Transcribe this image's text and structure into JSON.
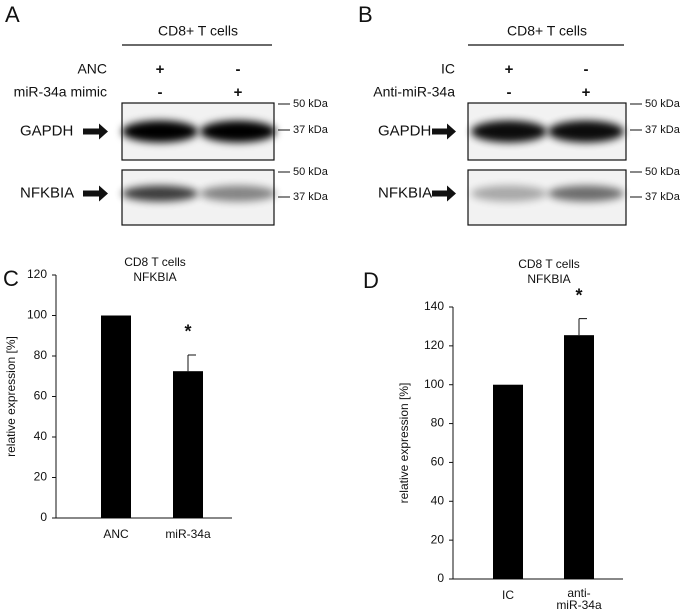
{
  "panels": [
    {
      "letter": "A",
      "header": "CD8+ T cells",
      "rows": [
        {
          "label": "ANC",
          "marks": [
            "+",
            "-"
          ]
        },
        {
          "label": "miR-34a mimic",
          "marks": [
            "-",
            "+"
          ]
        }
      ],
      "blots": [
        {
          "label": "GAPDH",
          "markers": [
            "50 kDa",
            "37 kDa"
          ]
        },
        {
          "label": "NFKBIA",
          "markers": [
            "50 kDa",
            "37 kDa"
          ]
        }
      ]
    },
    {
      "letter": "B",
      "header": "CD8+ T cells",
      "rows": [
        {
          "label": "IC",
          "marks": [
            "+",
            "-"
          ]
        },
        {
          "label": "Anti-miR-34a",
          "marks": [
            "-",
            "+"
          ]
        }
      ],
      "blots": [
        {
          "label": "GAPDH",
          "markers": [
            "50 kDa",
            "37 kDa"
          ]
        },
        {
          "label": "NFKBIA",
          "markers": [
            "50 kDa",
            "37 kDa"
          ]
        }
      ]
    }
  ],
  "chart_data": [
    {
      "type": "bar",
      "letter": "C",
      "title": "CD8 T cells",
      "subtitle": "NFKBIA",
      "y_label": "relative expression [%]",
      "categories": [
        "ANC",
        "miR-34a"
      ],
      "values": [
        100,
        72.5
      ],
      "errors": [
        null,
        8
      ],
      "significance": [
        null,
        "*"
      ],
      "color": "#000000",
      "ylim": [
        0,
        120
      ],
      "yticks": [
        0,
        20,
        40,
        60,
        80,
        100,
        120
      ]
    },
    {
      "type": "bar",
      "letter": "D",
      "title": "CD8 T cells",
      "subtitle": "NFKBIA",
      "y_label": "relative expression [%]",
      "categories": [
        "IC",
        "anti-miR-34a"
      ],
      "values": [
        100,
        125.5
      ],
      "errors": [
        null,
        8.5
      ],
      "significance": [
        null,
        "*"
      ],
      "color": "#000000",
      "ylim": [
        0,
        140
      ],
      "yticks": [
        0,
        20,
        40,
        60,
        80,
        100,
        120,
        140
      ]
    }
  ]
}
